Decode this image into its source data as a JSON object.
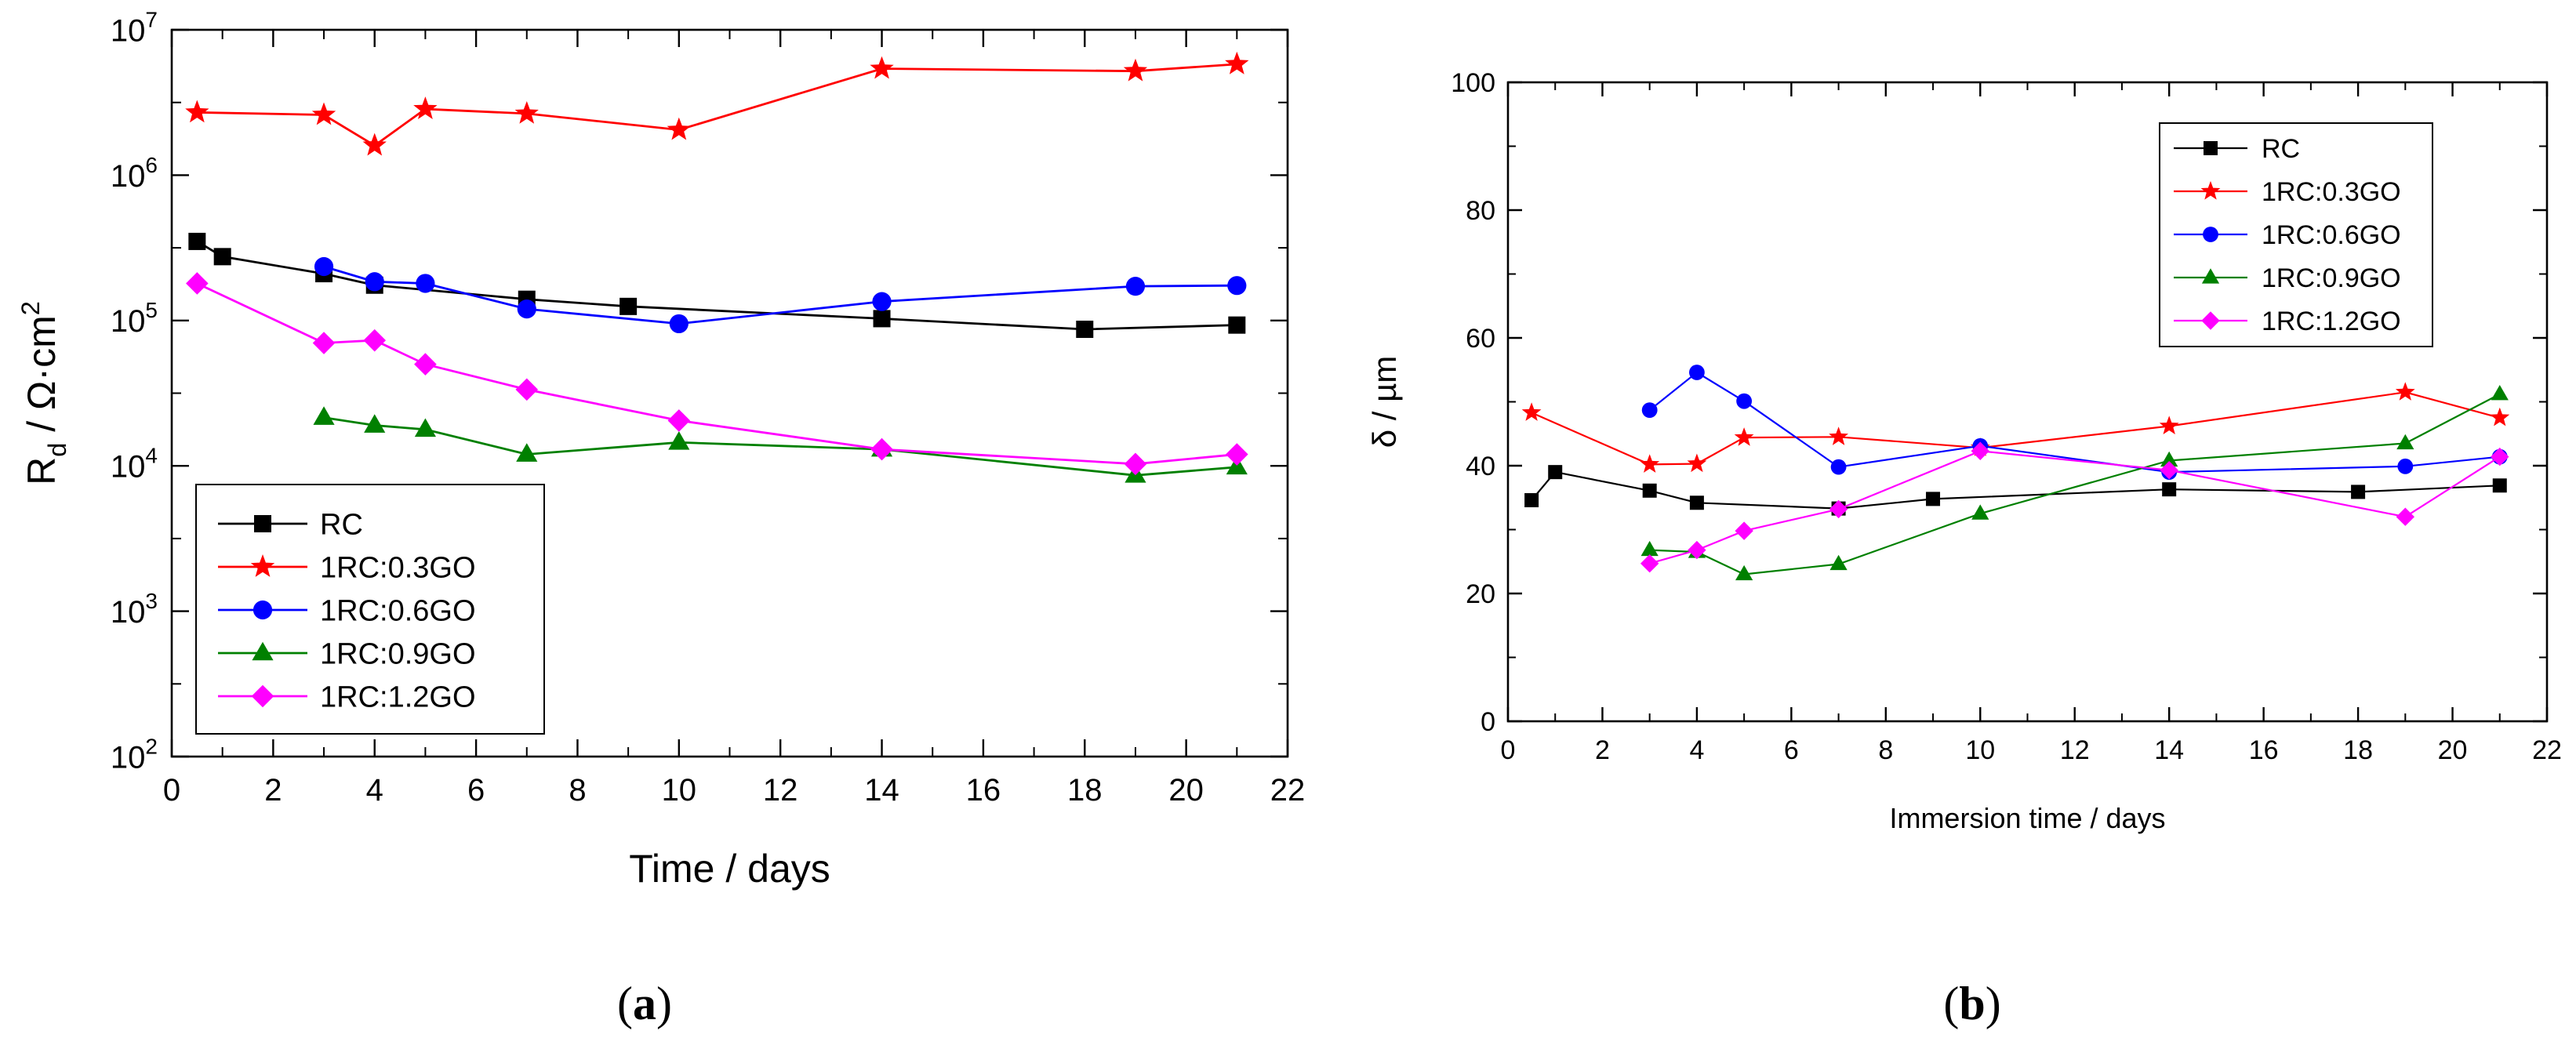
{
  "chart_data": [
    {
      "type": "line",
      "panel_label": "a",
      "xlabel": "Time / days",
      "ylabel": {
        "base": "R",
        "sub": "d",
        "rest": " / Ω·cm",
        "sup": "2"
      },
      "yscale": "log",
      "xlim": [
        0,
        22
      ],
      "ylim": [
        100,
        10000000
      ],
      "xticks": [
        0,
        2,
        4,
        6,
        8,
        10,
        12,
        14,
        16,
        18,
        20,
        22
      ],
      "yticks": [
        {
          "value": 100,
          "mantissa": "10",
          "exp": "2"
        },
        {
          "value": 1000,
          "mantissa": "10",
          "exp": "3"
        },
        {
          "value": 10000,
          "mantissa": "10",
          "exp": "4"
        },
        {
          "value": 100000,
          "mantissa": "10",
          "exp": "5"
        },
        {
          "value": 1000000,
          "mantissa": "10",
          "exp": "6"
        },
        {
          "value": 10000000,
          "mantissa": "10",
          "exp": "7"
        }
      ],
      "legend_position": "bottom-left",
      "series": [
        {
          "name": "RC",
          "color": "#000000",
          "marker": "square",
          "x": [
            0.5,
            1,
            3,
            4,
            7,
            9,
            14,
            18,
            21
          ],
          "y": [
            350000,
            275000,
            210000,
            175000,
            140000,
            125000,
            103000,
            87000,
            93000
          ]
        },
        {
          "name": "1RC:0.3GO",
          "color": "#ff0000",
          "marker": "star",
          "x": [
            0.5,
            3,
            4,
            5,
            7,
            10,
            14,
            19,
            21
          ],
          "y": [
            2700000,
            2600000,
            1600000,
            2850000,
            2650000,
            2050000,
            5400000,
            5200000,
            5800000
          ]
        },
        {
          "name": "1RC:0.6GO",
          "color": "#0000ff",
          "marker": "circle",
          "x": [
            3,
            4,
            5,
            7,
            10,
            14,
            19,
            21
          ],
          "y": [
            235000,
            185000,
            180000,
            120000,
            95000,
            135000,
            172000,
            174000
          ]
        },
        {
          "name": "1RC:0.9GO",
          "color": "#008000",
          "marker": "triangle",
          "x": [
            3,
            4,
            5,
            7,
            10,
            14,
            19,
            21
          ],
          "y": [
            21500,
            19000,
            17800,
            12000,
            14500,
            13000,
            8600,
            9800
          ]
        },
        {
          "name": "1RC:1.2GO",
          "color": "#ff00ff",
          "marker": "diamond",
          "x": [
            0.5,
            3,
            4,
            5,
            7,
            10,
            14,
            19,
            21
          ],
          "y": [
            180000,
            70000,
            73000,
            50000,
            33500,
            20500,
            13000,
            10300,
            12000
          ]
        }
      ]
    },
    {
      "type": "line",
      "panel_label": "b",
      "xlabel": "Immersion time / days",
      "ylabel": "δ / µm",
      "yscale": "linear",
      "xlim": [
        0,
        22
      ],
      "ylim": [
        0,
        100
      ],
      "xticks": [
        0,
        2,
        4,
        6,
        8,
        10,
        12,
        14,
        16,
        18,
        20,
        22
      ],
      "yticks": [
        0,
        20,
        40,
        60,
        80,
        100
      ],
      "legend_position": "top-right",
      "series": [
        {
          "name": "RC",
          "color": "#000000",
          "marker": "square",
          "x": [
            0.5,
            1,
            3,
            4,
            7,
            9,
            14,
            18,
            21
          ],
          "y": [
            34.6,
            39,
            36.1,
            34.2,
            33.3,
            34.8,
            36.3,
            35.9,
            36.9
          ]
        },
        {
          "name": "1RC:0.3GO",
          "color": "#ff0000",
          "marker": "star",
          "x": [
            0.5,
            3,
            4,
            5,
            7,
            10,
            14,
            19,
            21
          ],
          "y": [
            48.3,
            40.2,
            40.3,
            44.4,
            44.5,
            42.8,
            46.2,
            51.5,
            47.5
          ]
        },
        {
          "name": "1RC:0.6GO",
          "color": "#0000ff",
          "marker": "circle",
          "x": [
            3,
            4,
            5,
            7,
            10,
            14,
            19,
            21
          ],
          "y": [
            48.7,
            54.6,
            50.1,
            39.8,
            43.1,
            39,
            39.9,
            41.4
          ]
        },
        {
          "name": "1RC:0.9GO",
          "color": "#008000",
          "marker": "triangle",
          "x": [
            3,
            4,
            5,
            7,
            10,
            14,
            19,
            21
          ],
          "y": [
            26.8,
            26.5,
            23,
            24.6,
            32.5,
            40.8,
            43.5,
            51.2
          ]
        },
        {
          "name": "1RC:1.2GO",
          "color": "#ff00ff",
          "marker": "diamond",
          "x": [
            3,
            4,
            5,
            7,
            10,
            14,
            19,
            21
          ],
          "y": [
            24.7,
            26.8,
            29.8,
            33.2,
            42.3,
            39.3,
            32,
            41.4
          ]
        }
      ]
    }
  ]
}
